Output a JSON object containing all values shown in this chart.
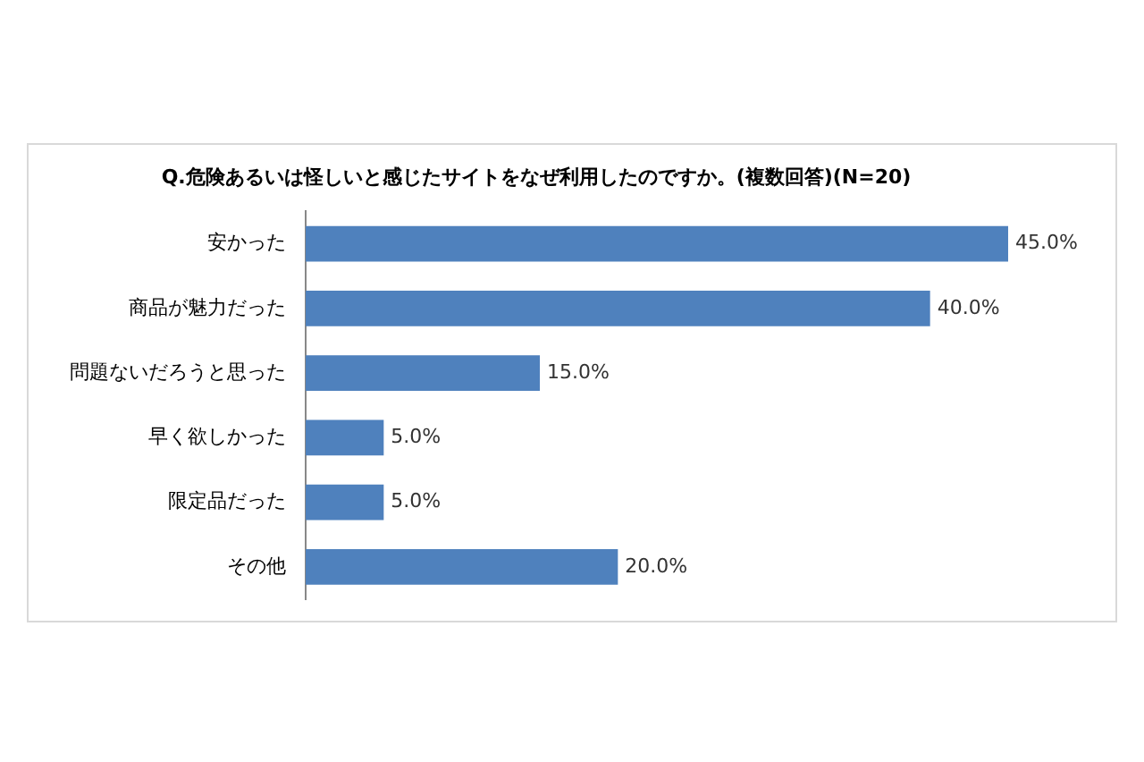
{
  "chart_data": {
    "type": "bar",
    "orientation": "horizontal",
    "title": "Q.危険あるいは怪しいと感じたサイトをなぜ利用したのですか。(複数回答)(N=20)",
    "categories": [
      "安かった",
      "商品が魅力だった",
      "問題ないだろうと思った",
      "早く欲しかった",
      "限定品だった",
      "その他"
    ],
    "values": [
      45,
      40,
      15,
      5,
      5,
      20
    ],
    "value_labels": [
      "45.0%",
      "40.0%",
      "15.0%",
      "5.0%",
      "5.0%",
      "20.0%"
    ],
    "color": "#4f81bd",
    "tick_labels": "y"
  }
}
